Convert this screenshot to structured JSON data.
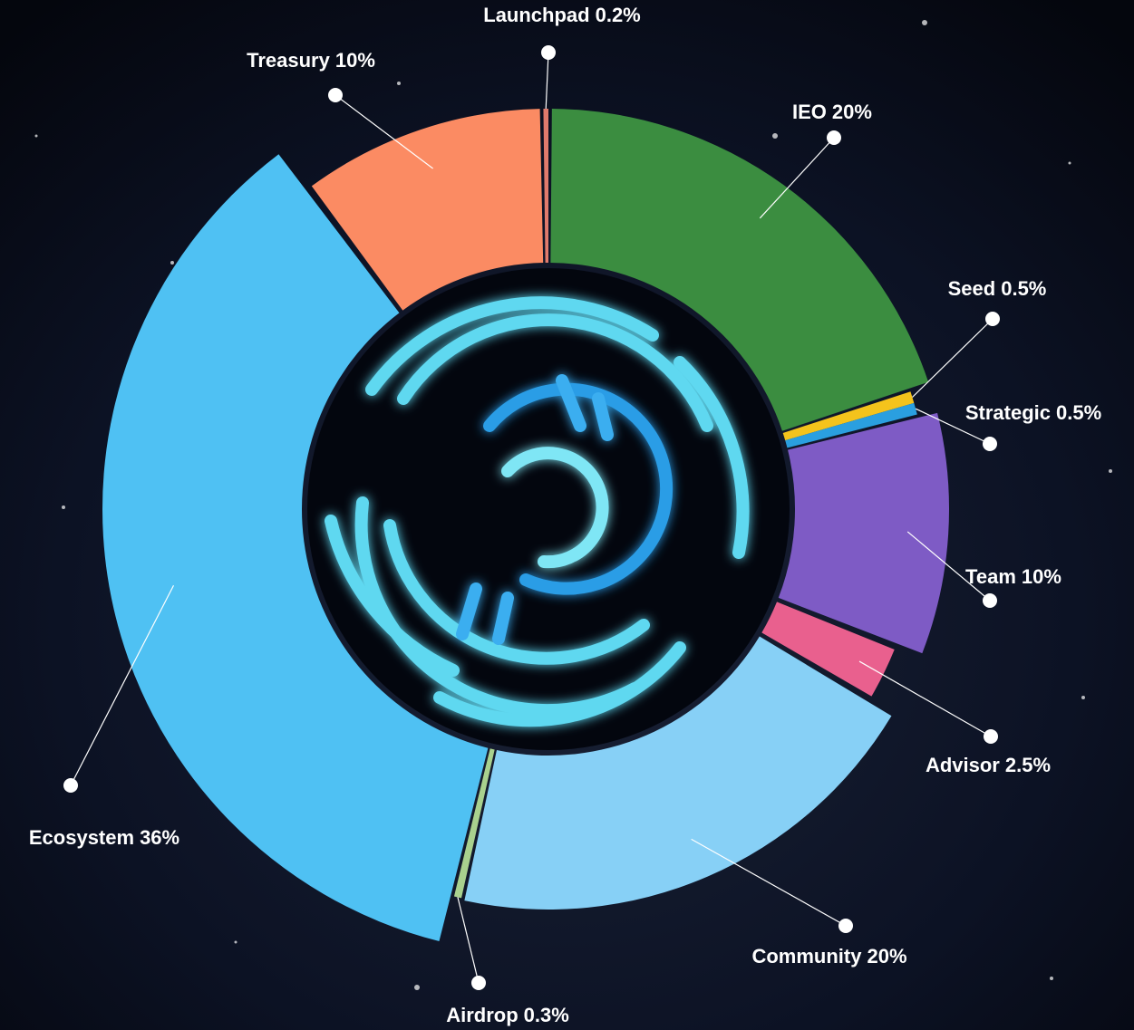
{
  "chart_data": {
    "type": "pie",
    "categories": [
      "IEO",
      "Seed",
      "Strategic",
      "Team",
      "Advisor",
      "Community",
      "Airdrop",
      "Ecosystem",
      "Treasury",
      "Launchpad"
    ],
    "values": [
      20,
      0.5,
      0.5,
      10,
      2.5,
      20,
      0.3,
      36,
      10,
      0.2
    ],
    "value_labels": [
      "20%",
      "0.5%",
      "0.5%",
      "10%",
      "2.5%",
      "20%",
      "0.3%",
      "36%",
      "10%",
      "0.2%"
    ],
    "colors": [
      "#3b8d40",
      "#f4c31c",
      "#2a9fe0",
      "#7e5bc5",
      "#e9608e",
      "#87d0f6",
      "#a9d18e",
      "#4fc1f3",
      "#fb8b63",
      "#e07a6c"
    ]
  }
}
